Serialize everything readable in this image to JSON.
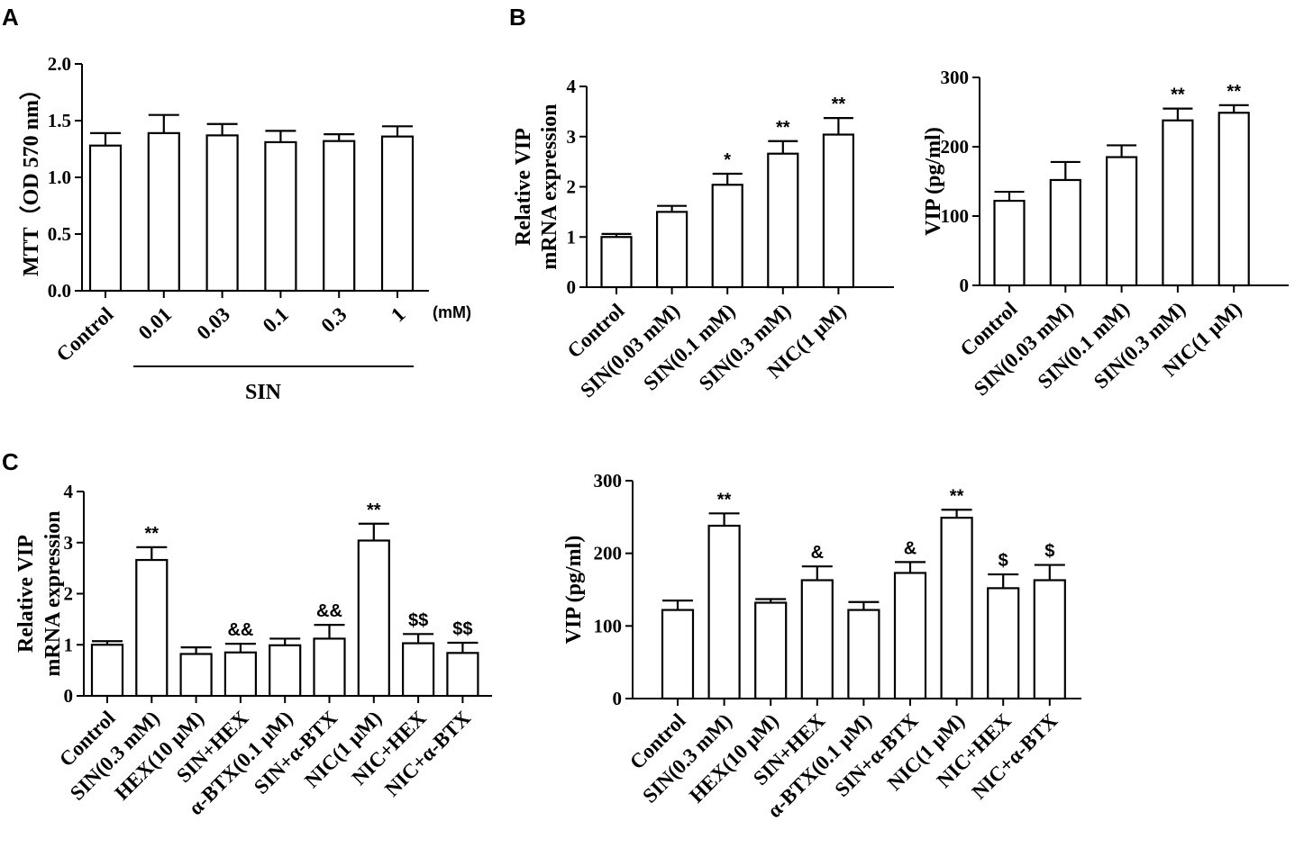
{
  "chart_data": [
    {
      "id": "A1",
      "panel": "A",
      "type": "bar",
      "ylabel": "MTT（OD 570 nm）",
      "ylim": [
        0,
        2.0
      ],
      "yticks": [
        "0.0",
        "0.5",
        "1.0",
        "1.5",
        "2.0"
      ],
      "categories": [
        "Control",
        "0.01",
        "0.03",
        "0.1",
        "0.3",
        "1"
      ],
      "values": [
        1.28,
        1.39,
        1.37,
        1.31,
        1.32,
        1.36
      ],
      "errors": [
        0.11,
        0.16,
        0.1,
        0.1,
        0.06,
        0.09
      ],
      "significance": [
        "",
        "",
        "",
        "",
        "",
        ""
      ],
      "unit_note": "(mM)",
      "group_label": "SIN"
    },
    {
      "id": "B1",
      "panel": "B",
      "type": "bar",
      "ylabel": "Relative VIP\nmRNA expression",
      "ylim": [
        0,
        4
      ],
      "yticks": [
        "0",
        "1",
        "2",
        "3",
        "4"
      ],
      "categories": [
        "Control",
        "SIN(0.03 mM)",
        "SIN(0.1 mM)",
        "SIN(0.3 mM)",
        "NIC(1 μM)"
      ],
      "values": [
        1.0,
        1.5,
        2.04,
        2.66,
        3.04
      ],
      "errors": [
        0.06,
        0.12,
        0.22,
        0.25,
        0.33
      ],
      "significance": [
        "",
        "",
        "*",
        "**",
        "**"
      ]
    },
    {
      "id": "B2",
      "panel": "",
      "type": "bar",
      "ylabel": "VIP (pg/ml)",
      "ylim": [
        0,
        300
      ],
      "yticks": [
        "0",
        "100",
        "200",
        "300"
      ],
      "categories": [
        "Control",
        "SIN(0.03 mM)",
        "SIN(0.1 mM)",
        "SIN(0.3 mM)",
        "NIC(1 μM)"
      ],
      "values": [
        122,
        152,
        185,
        238,
        249
      ],
      "errors": [
        13,
        26,
        17,
        17,
        11
      ],
      "significance": [
        "",
        "",
        "",
        "**",
        "**"
      ]
    },
    {
      "id": "C1",
      "panel": "C",
      "type": "bar",
      "ylabel": "Relative VIP\nmRNA expression",
      "ylim": [
        0,
        4
      ],
      "yticks": [
        "0",
        "1",
        "2",
        "3",
        "4"
      ],
      "categories": [
        "Control",
        "SIN(0.3 mM)",
        "HEX(10 μM)",
        "SIN+HEX",
        "α-BTX(0.1 μM)",
        "SIN+α-BTX",
        "NIC(1 μM)",
        "NIC+HEX",
        "NIC+α-BTX"
      ],
      "values": [
        1.0,
        2.66,
        0.82,
        0.85,
        0.99,
        1.12,
        3.04,
        1.03,
        0.84
      ],
      "errors": [
        0.07,
        0.25,
        0.13,
        0.17,
        0.13,
        0.27,
        0.33,
        0.18,
        0.2
      ],
      "significance": [
        "",
        "**",
        "",
        "&&",
        "",
        "&&",
        "**",
        "$$",
        "$$"
      ]
    },
    {
      "id": "C2",
      "panel": "",
      "type": "bar",
      "ylabel": "VIP (pg/ml)",
      "ylim": [
        0,
        300
      ],
      "yticks": [
        "0",
        "100",
        "200",
        "300"
      ],
      "categories": [
        "Control",
        "SIN(0.3 mM)",
        "HEX(10 μM)",
        "SIN+HEX",
        "α-BTX(0.1 μM)",
        "SIN+α-BTX",
        "NIC(1 μM)",
        "NIC+HEX",
        "NIC+α-BTX"
      ],
      "values": [
        122,
        238,
        132,
        163,
        122,
        173,
        249,
        152,
        163
      ],
      "errors": [
        13,
        17,
        5,
        19,
        11,
        15,
        11,
        19,
        21
      ],
      "significance": [
        "",
        "**",
        "",
        "&",
        "",
        "&",
        "**",
        "$",
        "$"
      ]
    }
  ]
}
